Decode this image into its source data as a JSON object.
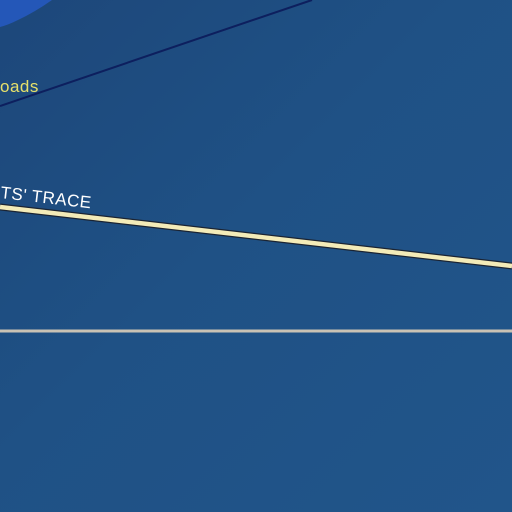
{
  "map": {
    "labels": {
      "partial_road_label": "oads",
      "trace_label": "TS' TRACE"
    },
    "colors": {
      "background": "#1f4f7e",
      "water_patch": "#2457b8",
      "road_dark": "#0d1f5e",
      "trace_road": "#f3ebb8",
      "trace_casing": "#1b2433",
      "light_road": "#c9c2b4",
      "road_label_text": "#e6e06a",
      "trace_label_text": "#ffffff"
    }
  }
}
